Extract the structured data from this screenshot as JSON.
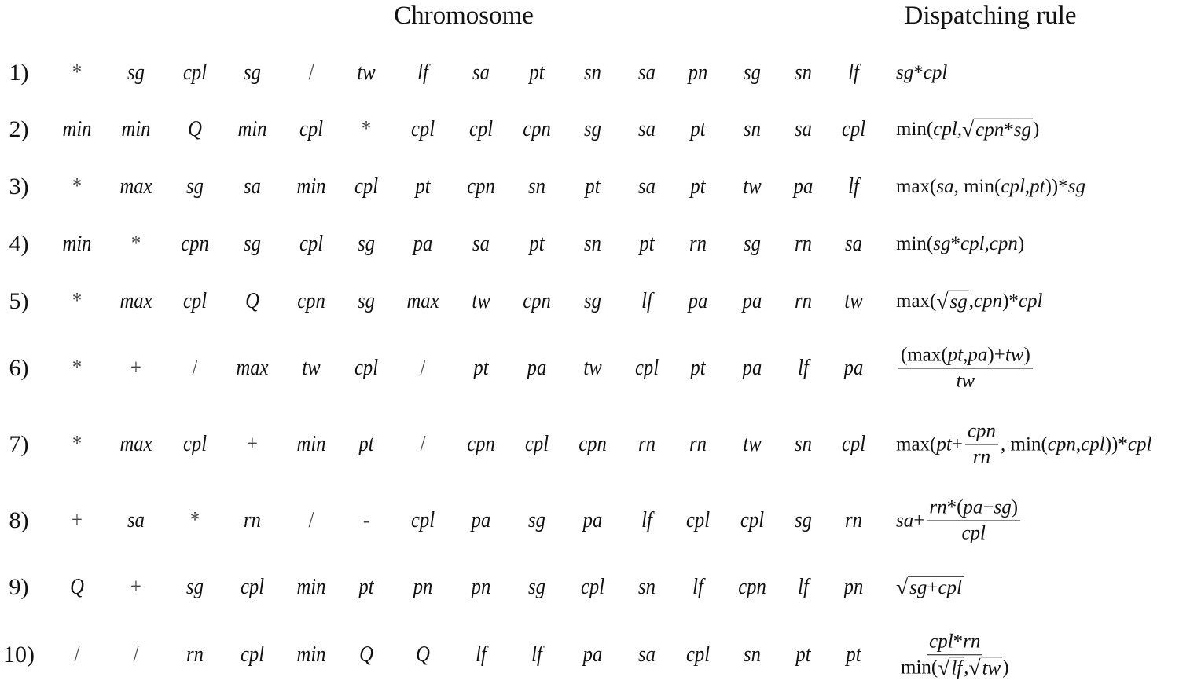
{
  "header": {
    "chromosome": "Chromosome",
    "rule": "Dispatching rule"
  },
  "rows": [
    {
      "label": "1)",
      "genes": [
        "*",
        "sg",
        "cpl",
        "sg",
        "/",
        "tw",
        "lf",
        "sa",
        "pt",
        "sn",
        "sa",
        "pn",
        "sg",
        "sn",
        "lf"
      ],
      "rule": [
        "sg*cpl"
      ]
    },
    {
      "label": "2)",
      "genes": [
        "min",
        "min",
        "Q",
        "min",
        "cpl",
        "*",
        "cpl",
        "cpl",
        "cpn",
        "sg",
        "sa",
        "pt",
        "sn",
        "sa",
        "cpl"
      ],
      "rule": [
        "min(cpl, ",
        {
          "sqrt": [
            "cpn*sg"
          ]
        },
        ")"
      ]
    },
    {
      "label": "3)",
      "genes": [
        "*",
        "max",
        "sg",
        "sa",
        "min",
        "cpl",
        "pt",
        "cpn",
        "sn",
        "pt",
        "sa",
        "pt",
        "tw",
        "pa",
        "lf"
      ],
      "rule": [
        "max(sa, min(cpl, pt))*sg"
      ]
    },
    {
      "label": "4)",
      "genes": [
        "min",
        "*",
        "cpn",
        "sg",
        "cpl",
        "sg",
        "pa",
        "sa",
        "pt",
        "sn",
        "pt",
        "rn",
        "sg",
        "rn",
        "sa"
      ],
      "rule": [
        "min(sg*cpl, cpn)"
      ]
    },
    {
      "label": "5)",
      "genes": [
        "*",
        "max",
        "cpl",
        "Q",
        "cpn",
        "sg",
        "max",
        "tw",
        "cpn",
        "sg",
        "lf",
        "pa",
        "pa",
        "rn",
        "tw"
      ],
      "rule": [
        "max(",
        {
          "sqrt": [
            "sg"
          ]
        },
        ", cpn)*cpl"
      ]
    },
    {
      "label": "6)",
      "genes": [
        "*",
        "+",
        "/",
        "max",
        "tw",
        "cpl",
        "/",
        "pt",
        "pa",
        "tw",
        "cpl",
        "pt",
        "pa",
        "lf",
        "pa"
      ],
      "rule": [
        {
          "frac": {
            "num": [
              "(max(pt, pa)+tw)"
            ],
            "den": [
              "tw"
            ]
          }
        }
      ]
    },
    {
      "label": "7)",
      "genes": [
        "*",
        "max",
        "cpl",
        "+",
        "min",
        "pt",
        "/",
        "cpn",
        "cpl",
        "cpn",
        "rn",
        "rn",
        "tw",
        "sn",
        "cpl"
      ],
      "rule": [
        "max(pt+",
        {
          "frac": {
            "num": [
              "cpn"
            ],
            "den": [
              "rn"
            ]
          }
        },
        ", min(cpn, cpl))*cpl"
      ]
    },
    {
      "label": "8)",
      "genes": [
        "+",
        "sa",
        "*",
        "rn",
        "/",
        "-",
        "cpl",
        "pa",
        "sg",
        "pa",
        "lf",
        "cpl",
        "cpl",
        "sg",
        "rn"
      ],
      "rule": [
        "sa+",
        {
          "frac": {
            "num": [
              "rn*(pa−sg)"
            ],
            "den": [
              "cpl"
            ]
          }
        }
      ]
    },
    {
      "label": "9)",
      "genes": [
        "Q",
        "+",
        "sg",
        "cpl",
        "min",
        "pt",
        "pn",
        "pn",
        "sg",
        "cpl",
        "sn",
        "lf",
        "cpn",
        "lf",
        "pn"
      ],
      "rule": [
        {
          "sqrt": [
            "sg+cpl"
          ]
        }
      ]
    },
    {
      "label": "10)",
      "genes": [
        "/",
        "/",
        "rn",
        "cpl",
        "min",
        "Q",
        "Q",
        "lf",
        "lf",
        "pa",
        "sa",
        "cpl",
        "sn",
        "pt",
        "pt"
      ],
      "rule": [
        {
          "frac": {
            "num": [
              "cpl*rn"
            ],
            "den": [
              "min(",
              {
                "sqrt": [
                  "lf"
                ]
              },
              ", ",
              {
                "sqrt": [
                  "tw"
                ]
              },
              ")"
            ]
          }
        }
      ]
    }
  ]
}
